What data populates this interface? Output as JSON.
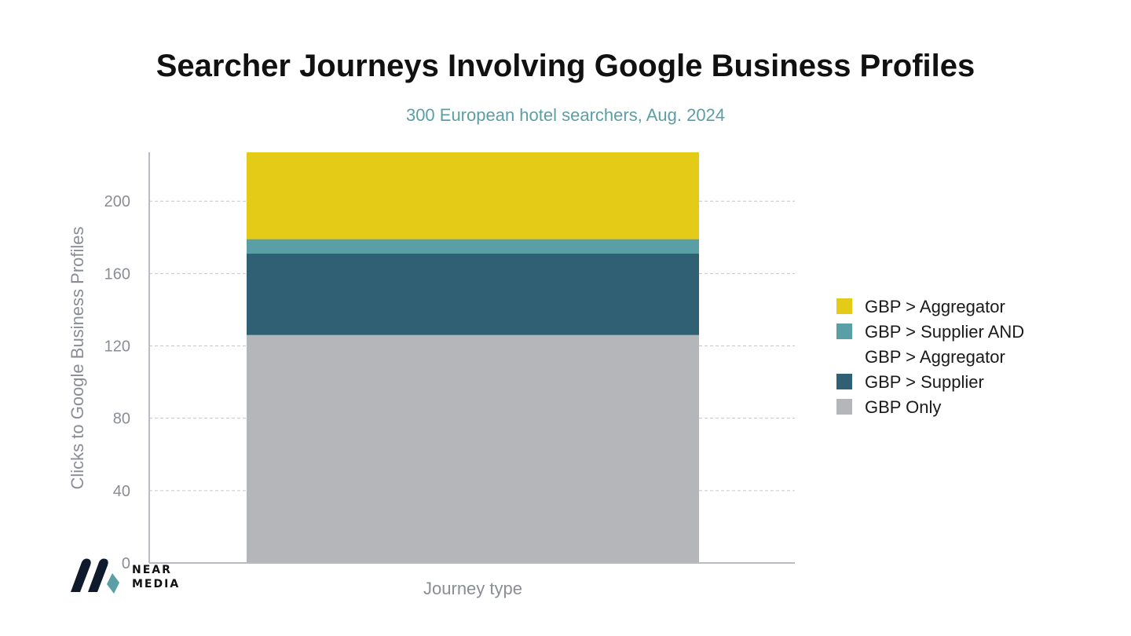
{
  "title": "Searcher Journeys Involving Google Business Profiles",
  "subtitle": "300 European hotel searchers, Aug. 2024",
  "brand": {
    "line1": "NEAR",
    "line2": "MEDIA",
    "colors": {
      "dark": "#0f1b2d",
      "accent": "#5b9fa6"
    }
  },
  "chart_data": {
    "type": "bar",
    "stacked": true,
    "categories": [
      ""
    ],
    "xlabel": "Journey type",
    "ylabel": "Clicks to Google Business Profiles",
    "ylim": [
      0,
      227
    ],
    "yticks": [
      0,
      40,
      80,
      120,
      160,
      200
    ],
    "grid": true,
    "legend_position": "right",
    "series": [
      {
        "name": "GBP Only",
        "values": [
          126
        ],
        "color": "#b5b6ba"
      },
      {
        "name": "GBP > Supplier",
        "values": [
          45
        ],
        "color": "#306073"
      },
      {
        "name": "GBP > Supplier AND\nGBP > Aggregator",
        "values": [
          8
        ],
        "color": "#5b9fa6"
      },
      {
        "name": "GBP > Aggregator",
        "values": [
          48
        ],
        "color": "#e3cb17"
      }
    ]
  }
}
